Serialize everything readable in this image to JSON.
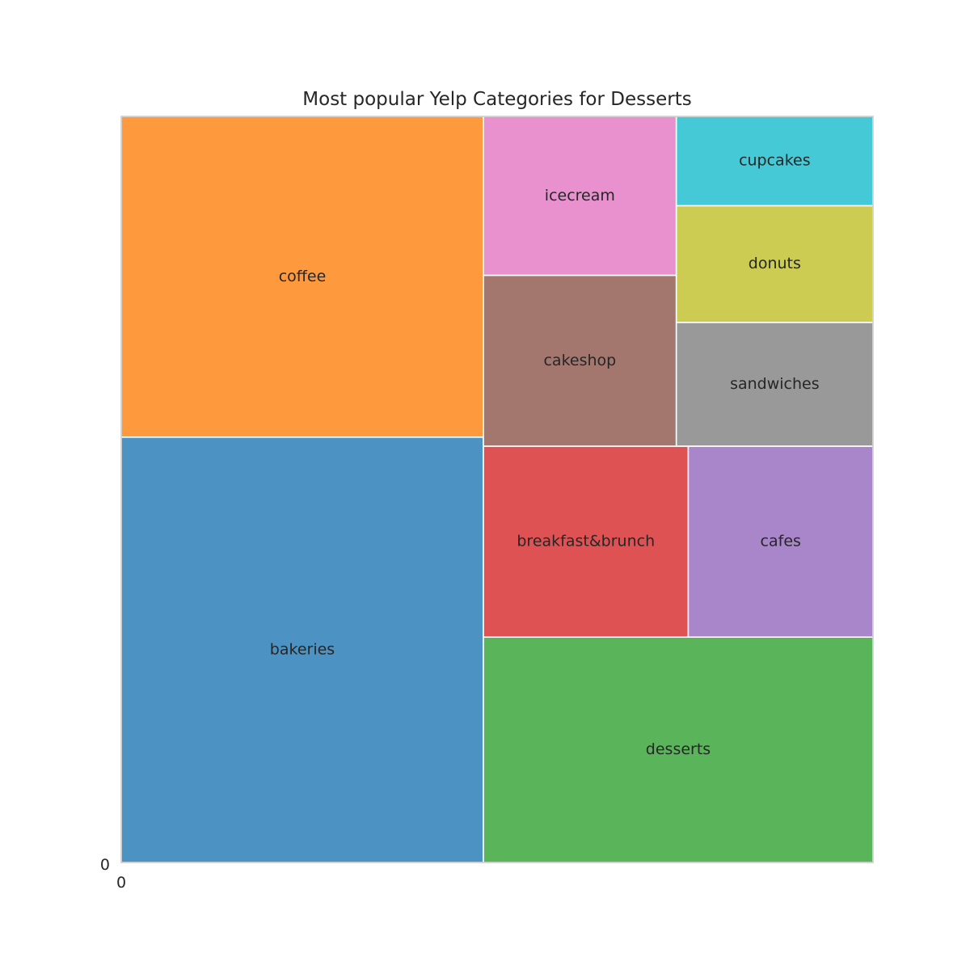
{
  "chart_data": {
    "type": "treemap",
    "title": "Most popular Yelp Categories for Desserts",
    "xlabel": "",
    "ylabel": "",
    "x_tick_labels": [
      "0"
    ],
    "y_tick_labels": [
      "0"
    ],
    "grid": false,
    "legend": "none",
    "frame_color": "#cccccc",
    "border_color": "#ffffff",
    "items": [
      {
        "label": "bakeries",
        "value": 1000,
        "color": "#4c92c3"
      },
      {
        "label": "coffee",
        "value": 754,
        "color": "#ff993e"
      },
      {
        "label": "desserts",
        "value": 570,
        "color": "#5ab55a"
      },
      {
        "label": "breakfast&brunch",
        "value": 254,
        "color": "#de5253"
      },
      {
        "label": "cafes",
        "value": 229,
        "color": "#a985ca"
      },
      {
        "label": "cakeshop",
        "value": 214,
        "color": "#a3776e"
      },
      {
        "label": "icecream",
        "value": 199,
        "color": "#e891ce"
      },
      {
        "label": "sandwiches",
        "value": 158,
        "color": "#999999"
      },
      {
        "label": "donuts",
        "value": 149,
        "color": "#cccc52"
      },
      {
        "label": "cupcakes",
        "value": 114,
        "color": "#45c9d7"
      }
    ]
  }
}
